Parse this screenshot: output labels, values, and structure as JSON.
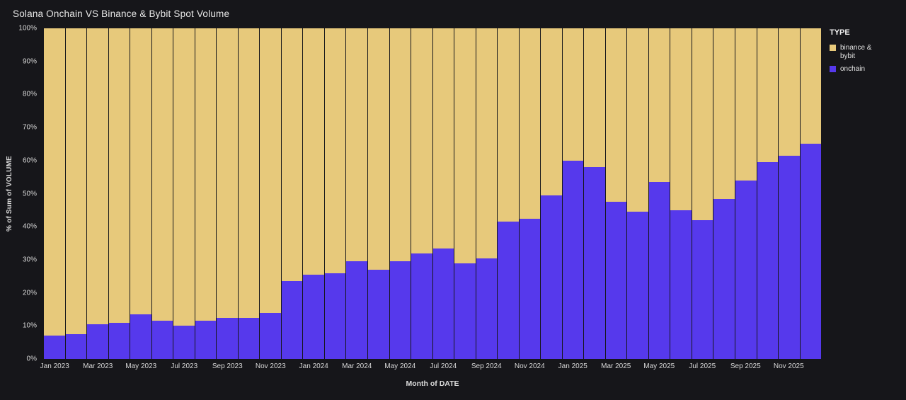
{
  "title": "Solana Onchain VS Binance & Bybit Spot Volume",
  "colors": {
    "background": "#16161a",
    "binance_bybit": "#e7c97b",
    "onchain": "#5639ec"
  },
  "legend": {
    "title": "TYPE",
    "items": [
      {
        "label": "binance & bybit",
        "color": "#e7c97b"
      },
      {
        "label": "onchain",
        "color": "#5639ec"
      }
    ]
  },
  "chart_data": {
    "type": "bar",
    "stacked": true,
    "percent": true,
    "title": "Solana Onchain VS Binance & Bybit Spot Volume",
    "xlabel": "Month of DATE",
    "ylabel": "% of Sum of VOLUME",
    "ylim": [
      0,
      100
    ],
    "y_ticks": [
      "0%",
      "10%",
      "20%",
      "30%",
      "40%",
      "50%",
      "60%",
      "70%",
      "80%",
      "90%",
      "100%"
    ],
    "x_tick_every": 2,
    "x_tick_labels": [
      "Jan 2023",
      "Mar 2023",
      "May 2023",
      "Jul 2023",
      "Sep 2023",
      "Nov 2023",
      "Jan 2024",
      "Mar 2024",
      "May 2024",
      "Jul 2024",
      "Sep 2024",
      "Nov 2024",
      "Jan 2025",
      "Mar 2025",
      "May 2025",
      "Jul 2025",
      "Sep 2025",
      "Nov 2025"
    ],
    "categories": [
      "Jan 2023",
      "Feb 2023",
      "Mar 2023",
      "Apr 2023",
      "May 2023",
      "Jun 2023",
      "Jul 2023",
      "Aug 2023",
      "Sep 2023",
      "Oct 2023",
      "Nov 2023",
      "Dec 2023",
      "Jan 2024",
      "Feb 2024",
      "Mar 2024",
      "Apr 2024",
      "May 2024",
      "Jun 2024",
      "Jul 2024",
      "Aug 2024",
      "Sep 2024",
      "Oct 2024",
      "Nov 2024",
      "Dec 2024",
      "Jan 2025",
      "Feb 2025",
      "Mar 2025",
      "Apr 2025",
      "May 2025",
      "Jun 2025",
      "Jul 2025",
      "Aug 2025",
      "Sep 2025",
      "Oct 2025",
      "Nov 2025",
      "Dec 2025"
    ],
    "series": [
      {
        "name": "onchain",
        "color": "#5639ec",
        "values": [
          7,
          7.5,
          10.5,
          11,
          13.5,
          11.5,
          10,
          11.5,
          12.5,
          12.5,
          14,
          23.5,
          25.5,
          26,
          29.5,
          27,
          29.5,
          32,
          33.5,
          29,
          30.5,
          41.5,
          42.5,
          49.5,
          60,
          58,
          47.5,
          44.5,
          53.5,
          45,
          42,
          48.5,
          54,
          59.5,
          61.5,
          65
        ]
      },
      {
        "name": "binance & bybit",
        "color": "#e7c97b",
        "values": [
          93,
          92.5,
          89.5,
          89,
          86.5,
          88.5,
          90,
          88.5,
          87.5,
          87.5,
          86,
          76.5,
          74.5,
          74,
          70.5,
          73,
          70.5,
          68,
          66.5,
          71,
          69.5,
          58.5,
          57.5,
          50.5,
          40,
          42,
          52.5,
          55.5,
          46.5,
          55,
          58,
          51.5,
          46,
          40.5,
          38.5,
          35
        ]
      }
    ]
  }
}
